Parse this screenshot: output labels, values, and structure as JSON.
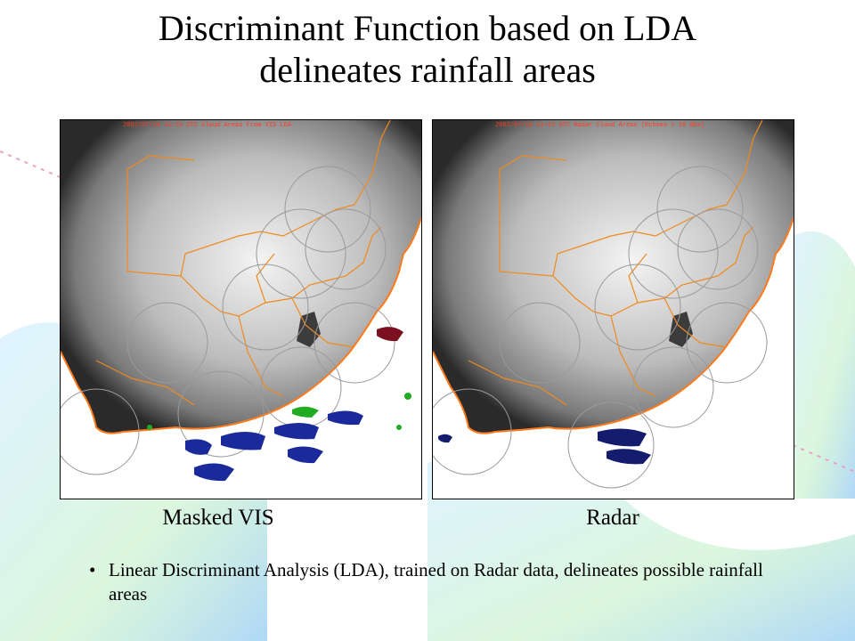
{
  "title": {
    "line1": "Discriminant Function based on LDA",
    "line2": "delineates rainfall areas"
  },
  "panels": [
    {
      "header": "2002/07/16  11:15 UTC Cloud Areas From VIS LDA",
      "caption": "Masked VIS",
      "rain_color": "#1a2a9a",
      "extra_rain_color": "#22aa22"
    },
    {
      "header": "2002/07/16  11:15 UTC Radar Cloud Areas (Echoes > 18 dbz)",
      "caption": "Radar",
      "rain_color": "#141c6e"
    }
  ],
  "bullet": {
    "text": "Linear Discriminant Analysis (LDA), trained on Radar data, delineates possible rainfall areas"
  },
  "colors": {
    "border_lines": "#f08a1c",
    "radar_rings": "#9a9a9a"
  }
}
